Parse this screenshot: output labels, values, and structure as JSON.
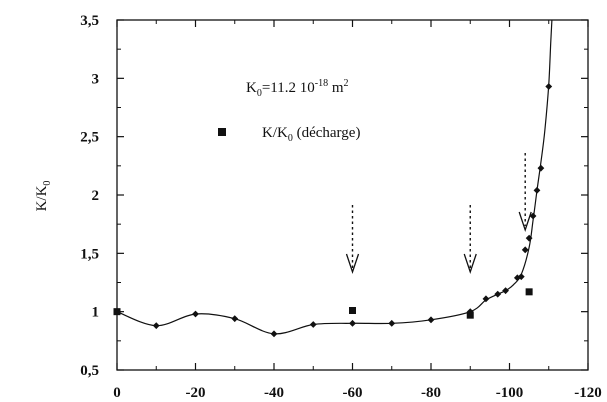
{
  "chart_data": {
    "type": "scatter",
    "title": "",
    "xlabel": "",
    "ylabel": {
      "main": "K/K",
      "sub": "0"
    },
    "xlim": [
      0,
      -120
    ],
    "ylim": [
      0.5,
      3.5
    ],
    "grid": false,
    "x_ticks": [
      0,
      -20,
      -40,
      -60,
      -80,
      -100,
      -120
    ],
    "x_tick_labels": [
      "0",
      "-20",
      "-40",
      "-60",
      "-80",
      "-100",
      "-120"
    ],
    "y_ticks": [
      0.5,
      1,
      1.5,
      2,
      2.5,
      3,
      3.5
    ],
    "y_tick_labels": [
      "0,5",
      "1",
      "1,5",
      "2",
      "2,5",
      "3",
      "3,5"
    ],
    "annotation": {
      "prefix": "K",
      "prefix_sub": "0",
      "value": "=11.2 10",
      "exponent": "-18",
      "unit": " m",
      "unit_exponent": "2"
    },
    "legend": {
      "main": "K/K",
      "sub": "0",
      "suffix": " (décharge)",
      "marker": "square",
      "placement": "upper-left"
    },
    "arrow_x": [
      -60,
      -90,
      -104
    ],
    "series": [
      {
        "marker": "diamond",
        "color": "#111111",
        "points": [
          [
            0,
            1.0
          ],
          [
            -10,
            0.88
          ],
          [
            -20,
            0.98
          ],
          [
            -30,
            0.94
          ],
          [
            -40,
            0.81
          ],
          [
            -50,
            0.89
          ],
          [
            -60,
            0.9
          ],
          [
            -70,
            0.9
          ],
          [
            -80,
            0.93
          ],
          [
            -90,
            1.0
          ],
          [
            -94,
            1.11
          ],
          [
            -97,
            1.15
          ],
          [
            -99,
            1.18
          ],
          [
            -102,
            1.29
          ],
          [
            -103,
            1.3
          ],
          [
            -104,
            1.53
          ],
          [
            -105,
            1.63
          ],
          [
            -106,
            1.82
          ],
          [
            -107,
            2.04
          ],
          [
            -108,
            2.23
          ],
          [
            -110,
            2.93
          ]
        ]
      },
      {
        "name": "K/K0 (décharge)",
        "marker": "square",
        "color": "#111111",
        "points": [
          [
            0,
            1.0
          ],
          [
            -60,
            1.01
          ],
          [
            -90,
            0.97
          ],
          [
            -105,
            1.17
          ]
        ]
      }
    ],
    "curve": [
      [
        0,
        1.0
      ],
      [
        -10,
        0.88
      ],
      [
        -20,
        0.98
      ],
      [
        -30,
        0.94
      ],
      [
        -40,
        0.81
      ],
      [
        -50,
        0.89
      ],
      [
        -60,
        0.9
      ],
      [
        -70,
        0.9
      ],
      [
        -80,
        0.93
      ],
      [
        -90,
        1.0
      ],
      [
        -94,
        1.1
      ],
      [
        -97,
        1.15
      ],
      [
        -99,
        1.18
      ],
      [
        -101,
        1.23
      ],
      [
        -103,
        1.32
      ],
      [
        -105,
        1.55
      ],
      [
        -106,
        1.78
      ],
      [
        -107,
        2.04
      ],
      [
        -108,
        2.28
      ],
      [
        -109,
        2.55
      ],
      [
        -110,
        2.95
      ],
      [
        -110.5,
        3.3
      ],
      [
        -110.8,
        3.5
      ]
    ]
  }
}
